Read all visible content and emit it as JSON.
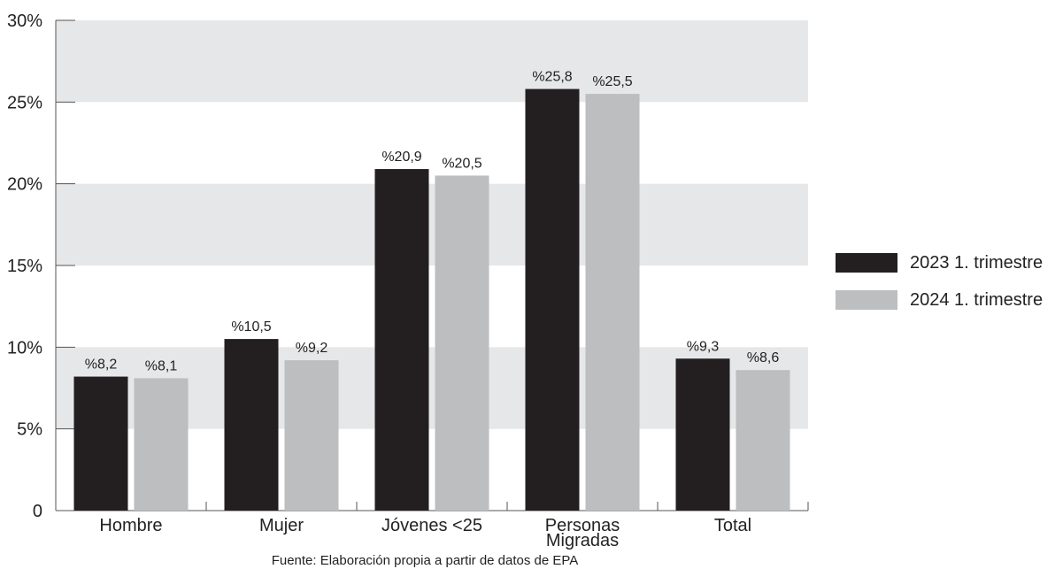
{
  "chart_data": {
    "type": "bar",
    "categories": [
      "Hombre",
      "Mujer",
      "Jóvenes <25",
      "Personas\nMigradas",
      "Total"
    ],
    "series": [
      {
        "name": "2023 1. trimestre",
        "values": [
          8.2,
          10.5,
          20.9,
          25.8,
          9.3
        ],
        "labels": [
          "%8,2",
          "%10,5",
          "%20,9",
          "%25,8",
          "%9,3"
        ],
        "color": "#231f20"
      },
      {
        "name": "2024 1. trimestre",
        "values": [
          8.1,
          9.2,
          20.5,
          25.5,
          8.6
        ],
        "labels": [
          "%8,1",
          "%9,2",
          "%20,5",
          "%25,5",
          "%8,6"
        ],
        "color": "#bcbec0"
      }
    ],
    "yticks": [
      "0",
      "5%",
      "10%",
      "15%",
      "20%",
      "25%",
      "30%"
    ],
    "ylim": [
      0,
      30
    ],
    "grid": "alternating bands",
    "band_color": "#e6e7e8",
    "legend_position": "right"
  },
  "source": "Fuente: Elaboración propia a partir de datos de EPA"
}
